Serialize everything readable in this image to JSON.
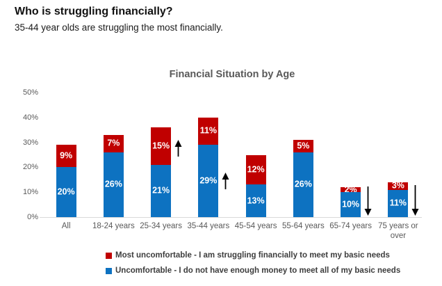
{
  "page": {
    "heading": "Who is struggling financially?",
    "subheading": "35-44 year olds are struggling the most financially."
  },
  "chart_data": {
    "type": "bar",
    "stacked": true,
    "title": "Financial Situation by Age",
    "categories": [
      "All",
      "18-24 years",
      "25-34 years",
      "35-44 years",
      "45-54 years",
      "55-64 years",
      "65-74 years",
      "75 years or over"
    ],
    "series": [
      {
        "name": "Uncomfortable - I do not have enough money to meet all of my basic needs",
        "color": "#0d72c1",
        "values": [
          20,
          26,
          21,
          29,
          13,
          26,
          10,
          11
        ]
      },
      {
        "name": "Most uncomfortable - I am struggling financially to meet my basic needs",
        "color": "#c00000",
        "values": [
          9,
          7,
          15,
          11,
          12,
          5,
          2,
          3
        ]
      }
    ],
    "value_suffix": "%",
    "xlabel": "",
    "ylabel": "",
    "ylim": [
      0,
      50
    ],
    "yticks": [
      0,
      10,
      20,
      30,
      40,
      50
    ],
    "ytick_suffix": "%",
    "grid": false,
    "legend_position": "bottom-left",
    "legend_order": [
      "Most uncomfortable - I am struggling financially to meet my basic needs",
      "Uncomfortable - I do not have enough money to meet all of my basic needs"
    ],
    "annotations": [
      {
        "category_index": 2,
        "direction": "up",
        "center_pct": 27.7,
        "length_pct": 6.7,
        "meaning": "increase"
      },
      {
        "category_index": 3,
        "direction": "up",
        "center_pct": 14.5,
        "length_pct": 6.7,
        "meaning": "increase"
      },
      {
        "category_index": 6,
        "direction": "down",
        "center_pct": 6.4,
        "length_pct": 11.7,
        "meaning": "decrease"
      },
      {
        "category_index": 7,
        "direction": "down",
        "center_pct": 6.6,
        "length_pct": 12.3,
        "meaning": "decrease"
      }
    ],
    "colors": {
      "blue_series": "#0d72c1",
      "red_series": "#c00000",
      "axis_text": "#595959",
      "axis_line": "#d9d9d9",
      "chart_title": "#595959",
      "data_label_text": "#ffffff",
      "arrow": "#000000"
    }
  }
}
